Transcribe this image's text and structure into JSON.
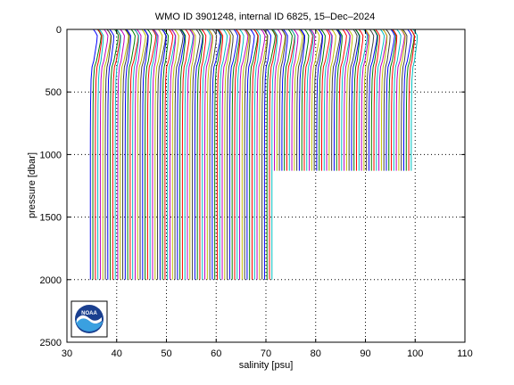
{
  "chart_data": {
    "type": "line",
    "title": "WMO ID 3901248, internal ID 6825, 15–Dec–2024",
    "xlabel": "salinity [psu]",
    "ylabel": "pressure [dbar]",
    "xlim": [
      30,
      110
    ],
    "ylim": [
      2500,
      0
    ],
    "y_reversed": true,
    "grid": true,
    "xticks": [
      30,
      40,
      50,
      60,
      70,
      80,
      90,
      100,
      110
    ],
    "yticks": [
      0,
      500,
      1000,
      1500,
      2000,
      2500
    ],
    "offset_per_profile_psu": 0.5,
    "profile_count": 130,
    "first_profile_offset_psu": 0,
    "deep_profile_count": 74,
    "deep_profile_max_pressure": 2000,
    "shallow_profile_max_pressure": 1130,
    "profile_shape": {
      "pressure": [
        0,
        20,
        50,
        100,
        150,
        200,
        250,
        300,
        400,
        600,
        800,
        1000,
        1130,
        1500,
        2000
      ],
      "salinity_base": [
        35.3,
        35.7,
        36.1,
        36.0,
        35.8,
        35.6,
        35.4,
        35.05,
        34.85,
        34.75,
        34.72,
        34.71,
        34.71,
        34.71,
        34.72
      ]
    },
    "color_cycle": [
      "#0000ff",
      "#008000",
      "#ff0000",
      "#00bfbf",
      "#bf00bf",
      "#bfbf00",
      "#404040"
    ],
    "logo": "noaa-logo"
  }
}
